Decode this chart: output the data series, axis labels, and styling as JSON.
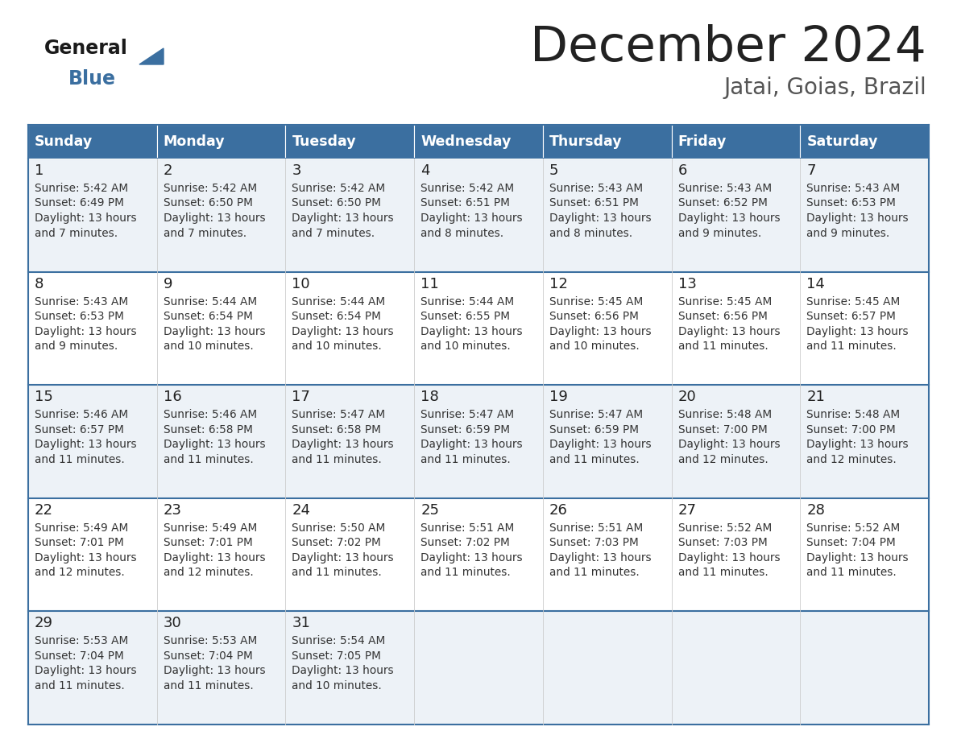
{
  "title": "December 2024",
  "subtitle": "Jatai, Goias, Brazil",
  "days_of_week": [
    "Sunday",
    "Monday",
    "Tuesday",
    "Wednesday",
    "Thursday",
    "Friday",
    "Saturday"
  ],
  "header_bg": "#3b6fa0",
  "header_text": "#ffffff",
  "row_bg_even": "#edf2f7",
  "row_bg_odd": "#ffffff",
  "cell_border_color": "#3b6fa0",
  "inner_border_color": "#cccccc",
  "title_color": "#222222",
  "subtitle_color": "#555555",
  "day_number_color": "#222222",
  "cell_text_color": "#333333",
  "logo_general_color": "#1a1a1a",
  "logo_blue_color": "#3b6fa0",
  "logo_triangle_color": "#3b6fa0",
  "calendar_data": [
    [
      {
        "day": 1,
        "sunrise": "5:42 AM",
        "sunset": "6:49 PM",
        "daylight_h": "13 hours",
        "daylight_m": "7 minutes."
      },
      {
        "day": 2,
        "sunrise": "5:42 AM",
        "sunset": "6:50 PM",
        "daylight_h": "13 hours",
        "daylight_m": "7 minutes."
      },
      {
        "day": 3,
        "sunrise": "5:42 AM",
        "sunset": "6:50 PM",
        "daylight_h": "13 hours",
        "daylight_m": "7 minutes."
      },
      {
        "day": 4,
        "sunrise": "5:42 AM",
        "sunset": "6:51 PM",
        "daylight_h": "13 hours",
        "daylight_m": "8 minutes."
      },
      {
        "day": 5,
        "sunrise": "5:43 AM",
        "sunset": "6:51 PM",
        "daylight_h": "13 hours",
        "daylight_m": "8 minutes."
      },
      {
        "day": 6,
        "sunrise": "5:43 AM",
        "sunset": "6:52 PM",
        "daylight_h": "13 hours",
        "daylight_m": "9 minutes."
      },
      {
        "day": 7,
        "sunrise": "5:43 AM",
        "sunset": "6:53 PM",
        "daylight_h": "13 hours",
        "daylight_m": "9 minutes."
      }
    ],
    [
      {
        "day": 8,
        "sunrise": "5:43 AM",
        "sunset": "6:53 PM",
        "daylight_h": "13 hours",
        "daylight_m": "9 minutes."
      },
      {
        "day": 9,
        "sunrise": "5:44 AM",
        "sunset": "6:54 PM",
        "daylight_h": "13 hours",
        "daylight_m": "10 minutes."
      },
      {
        "day": 10,
        "sunrise": "5:44 AM",
        "sunset": "6:54 PM",
        "daylight_h": "13 hours",
        "daylight_m": "10 minutes."
      },
      {
        "day": 11,
        "sunrise": "5:44 AM",
        "sunset": "6:55 PM",
        "daylight_h": "13 hours",
        "daylight_m": "10 minutes."
      },
      {
        "day": 12,
        "sunrise": "5:45 AM",
        "sunset": "6:56 PM",
        "daylight_h": "13 hours",
        "daylight_m": "10 minutes."
      },
      {
        "day": 13,
        "sunrise": "5:45 AM",
        "sunset": "6:56 PM",
        "daylight_h": "13 hours",
        "daylight_m": "11 minutes."
      },
      {
        "day": 14,
        "sunrise": "5:45 AM",
        "sunset": "6:57 PM",
        "daylight_h": "13 hours",
        "daylight_m": "11 minutes."
      }
    ],
    [
      {
        "day": 15,
        "sunrise": "5:46 AM",
        "sunset": "6:57 PM",
        "daylight_h": "13 hours",
        "daylight_m": "11 minutes."
      },
      {
        "day": 16,
        "sunrise": "5:46 AM",
        "sunset": "6:58 PM",
        "daylight_h": "13 hours",
        "daylight_m": "11 minutes."
      },
      {
        "day": 17,
        "sunrise": "5:47 AM",
        "sunset": "6:58 PM",
        "daylight_h": "13 hours",
        "daylight_m": "11 minutes."
      },
      {
        "day": 18,
        "sunrise": "5:47 AM",
        "sunset": "6:59 PM",
        "daylight_h": "13 hours",
        "daylight_m": "11 minutes."
      },
      {
        "day": 19,
        "sunrise": "5:47 AM",
        "sunset": "6:59 PM",
        "daylight_h": "13 hours",
        "daylight_m": "11 minutes."
      },
      {
        "day": 20,
        "sunrise": "5:48 AM",
        "sunset": "7:00 PM",
        "daylight_h": "13 hours",
        "daylight_m": "12 minutes."
      },
      {
        "day": 21,
        "sunrise": "5:48 AM",
        "sunset": "7:00 PM",
        "daylight_h": "13 hours",
        "daylight_m": "12 minutes."
      }
    ],
    [
      {
        "day": 22,
        "sunrise": "5:49 AM",
        "sunset": "7:01 PM",
        "daylight_h": "13 hours",
        "daylight_m": "12 minutes."
      },
      {
        "day": 23,
        "sunrise": "5:49 AM",
        "sunset": "7:01 PM",
        "daylight_h": "13 hours",
        "daylight_m": "12 minutes."
      },
      {
        "day": 24,
        "sunrise": "5:50 AM",
        "sunset": "7:02 PM",
        "daylight_h": "13 hours",
        "daylight_m": "11 minutes."
      },
      {
        "day": 25,
        "sunrise": "5:51 AM",
        "sunset": "7:02 PM",
        "daylight_h": "13 hours",
        "daylight_m": "11 minutes."
      },
      {
        "day": 26,
        "sunrise": "5:51 AM",
        "sunset": "7:03 PM",
        "daylight_h": "13 hours",
        "daylight_m": "11 minutes."
      },
      {
        "day": 27,
        "sunrise": "5:52 AM",
        "sunset": "7:03 PM",
        "daylight_h": "13 hours",
        "daylight_m": "11 minutes."
      },
      {
        "day": 28,
        "sunrise": "5:52 AM",
        "sunset": "7:04 PM",
        "daylight_h": "13 hours",
        "daylight_m": "11 minutes."
      }
    ],
    [
      {
        "day": 29,
        "sunrise": "5:53 AM",
        "sunset": "7:04 PM",
        "daylight_h": "13 hours",
        "daylight_m": "11 minutes."
      },
      {
        "day": 30,
        "sunrise": "5:53 AM",
        "sunset": "7:04 PM",
        "daylight_h": "13 hours",
        "daylight_m": "11 minutes."
      },
      {
        "day": 31,
        "sunrise": "5:54 AM",
        "sunset": "7:05 PM",
        "daylight_h": "13 hours",
        "daylight_m": "10 minutes."
      },
      null,
      null,
      null,
      null
    ]
  ]
}
